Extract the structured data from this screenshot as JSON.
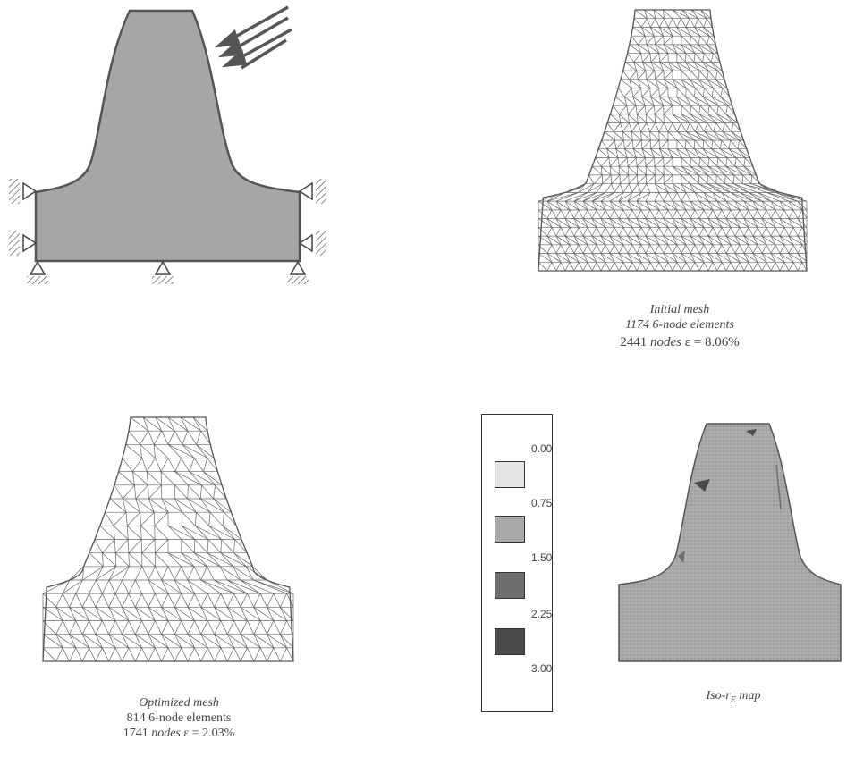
{
  "panels": {
    "initial": {
      "title": "Initial mesh",
      "elements": "1174 6-node elements",
      "nodes_label": "2441",
      "nodes_word": "nodes",
      "error": "ε = 8.06%"
    },
    "optimized": {
      "title": "Optimized mesh",
      "elements": "814 6-node elements",
      "nodes_label": "1741",
      "nodes_word": "nodes",
      "error": "ε = 2.03%"
    },
    "iso_map": {
      "caption": "Iso-r",
      "caption_sub": "E",
      "caption_end": "map"
    }
  },
  "legend": {
    "values": [
      "0.00",
      "0.75",
      "1.50",
      "2.25",
      "3.00"
    ],
    "colors": [
      "#e4e4e4",
      "#a9a9a9",
      "#6e6e6e",
      "#4a4a4a"
    ]
  },
  "colors": {
    "tooth_fill": "#a6a6a6",
    "outline": "#555555",
    "mesh_line": "#666666"
  },
  "icons": [
    "load-arrows",
    "pin-support-icon",
    "roller-support-icon"
  ]
}
